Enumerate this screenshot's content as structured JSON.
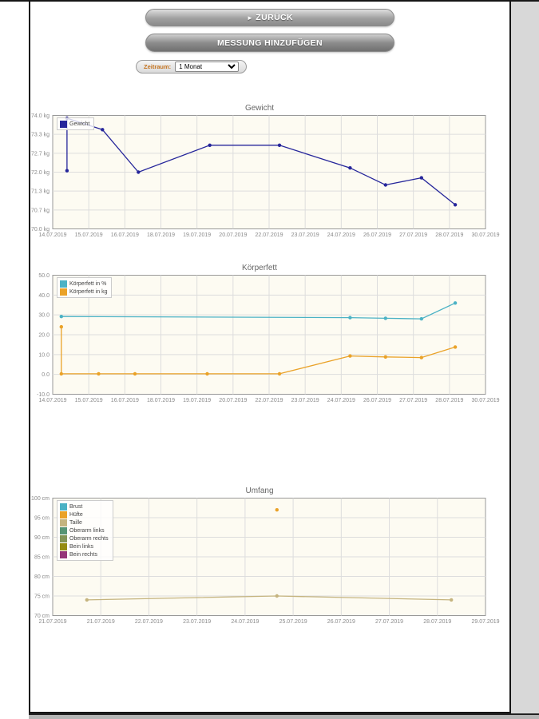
{
  "toolbar": {
    "back_icon": "►",
    "back_label": "ZURÜCK",
    "add_label": "MESSUNG HINZUFÜGEN",
    "period_label": "Zeitraum:",
    "period_value": "1 Monat"
  },
  "chart_style": {
    "plot_background": "#fdfbf2",
    "plot_border": "#999999",
    "gridline_color": "#dddddd",
    "tick_label_color": "#8a8a8a",
    "title_color": "#666666"
  },
  "chart_data": [
    {
      "type": "line",
      "title": "Gewicht",
      "xlabel": "",
      "ylabel": "",
      "unit": "kg",
      "ylim": [
        70,
        74
      ],
      "yticks": [
        "74.0 kg",
        "73.3 kg",
        "72.7 kg",
        "72.0 kg",
        "71.3 kg",
        "70.7 kg",
        "70.0 kg"
      ],
      "xticks": [
        "14.07.2019",
        "15.07.2019",
        "16.07.2019",
        "18.07.2019",
        "19.07.2019",
        "20.07.2019",
        "22.07.2019",
        "23.07.2019",
        "24.07.2019",
        "26.07.2019",
        "27.07.2019",
        "28.07.2019",
        "30.07.2019"
      ],
      "x_axis_range": {
        "min": "14.07.2019",
        "max": "30.07.2019",
        "x_unit": "fraction of axis width"
      },
      "grid": true,
      "legend_position": "nw",
      "series": [
        {
          "name": "Gewicht",
          "color": "#26269b",
          "points": [
            [
              0.033,
              72.05
            ],
            [
              0.033,
              73.9
            ],
            [
              0.115,
              73.5
            ],
            [
              0.198,
              72.0
            ],
            [
              0.363,
              72.95
            ],
            [
              0.524,
              72.95
            ],
            [
              0.687,
              72.15
            ],
            [
              0.769,
              71.55
            ],
            [
              0.852,
              71.8
            ],
            [
              0.93,
              70.85
            ]
          ]
        }
      ]
    },
    {
      "type": "line",
      "title": "Körperfett",
      "xlabel": "",
      "ylabel": "",
      "ylim": [
        -10,
        50
      ],
      "yticks": [
        "50.0",
        "40.0",
        "30.0",
        "20.0",
        "10.0",
        "0.0",
        "-10.0"
      ],
      "xticks": [
        "14.07.2019",
        "15.07.2019",
        "16.07.2019",
        "18.07.2019",
        "19.07.2019",
        "20.07.2019",
        "22.07.2019",
        "23.07.2019",
        "24.07.2019",
        "26.07.2019",
        "27.07.2019",
        "28.07.2019",
        "30.07.2019"
      ],
      "x_axis_range": {
        "min": "14.07.2019",
        "max": "30.07.2019",
        "x_unit": "fraction of axis width"
      },
      "grid": true,
      "legend_position": "nw",
      "series": [
        {
          "name": "Körperfett in %",
          "color": "#4bb2c5",
          "points": [
            [
              0.02,
              29.2
            ],
            [
              0.687,
              28.6
            ],
            [
              0.769,
              28.3
            ],
            [
              0.852,
              28.0
            ],
            [
              0.93,
              36.0
            ]
          ]
        },
        {
          "name": "Körperfett in kg",
          "color": "#EAA228",
          "points": [
            [
              0.02,
              24.0
            ],
            [
              0.02,
              0.3
            ],
            [
              0.106,
              0.3
            ],
            [
              0.19,
              0.3
            ],
            [
              0.357,
              0.3
            ],
            [
              0.524,
              0.3
            ],
            [
              0.687,
              9.3
            ],
            [
              0.769,
              8.8
            ],
            [
              0.852,
              8.5
            ],
            [
              0.93,
              13.8
            ]
          ]
        }
      ]
    },
    {
      "type": "line",
      "title": "Umfang",
      "xlabel": "",
      "ylabel": "",
      "unit": "cm",
      "ylim": [
        70,
        100
      ],
      "yticks": [
        "100 cm",
        "95 cm",
        "90 cm",
        "85 cm",
        "80 cm",
        "75 cm",
        "70 cm"
      ],
      "xticks": [
        "21.07.2019",
        "21.07.2019",
        "22.07.2019",
        "23.07.2019",
        "24.07.2019",
        "25.07.2019",
        "26.07.2019",
        "27.07.2019",
        "28.07.2019",
        "29.07.2019"
      ],
      "x_axis_range": {
        "min": "21.07.2019",
        "max": "29.07.2019",
        "x_unit": "fraction of axis width"
      },
      "grid": true,
      "legend_position": "nw",
      "series": [
        {
          "name": "Brust",
          "color": "#4bb2c5",
          "points": []
        },
        {
          "name": "Hüfte",
          "color": "#EAA228",
          "points": [
            [
              0.518,
              97
            ]
          ]
        },
        {
          "name": "Taille",
          "color": "#c5b47f",
          "points": [
            [
              0.079,
              74
            ],
            [
              0.518,
              75
            ],
            [
              0.921,
              74
            ]
          ]
        },
        {
          "name": "Oberarm links",
          "color": "#579575",
          "points": []
        },
        {
          "name": "Oberarm rechts",
          "color": "#839557",
          "points": []
        },
        {
          "name": "Bein links",
          "color": "#958c12",
          "points": []
        },
        {
          "name": "Bein rechts",
          "color": "#953579",
          "points": []
        }
      ]
    }
  ]
}
